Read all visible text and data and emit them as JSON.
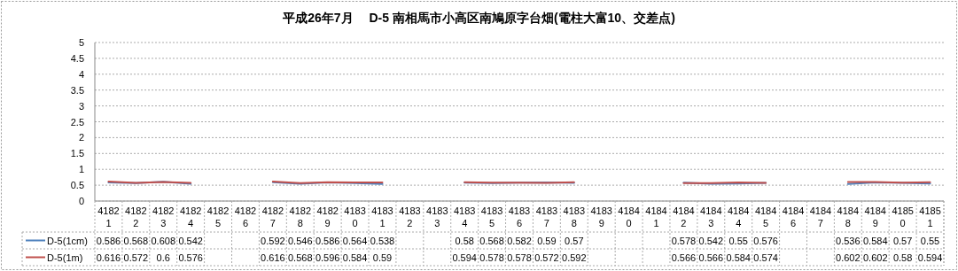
{
  "chart_data": {
    "type": "line",
    "title": "平成26年7月　 D-5 南相馬市小高区南鳩原字台畑(電柱大富10、交差点)",
    "categories": [
      "41821",
      "41822",
      "41823",
      "41824",
      "41825",
      "41826",
      "41827",
      "41828",
      "41829",
      "41830",
      "41831",
      "41832",
      "41833",
      "41834",
      "41835",
      "41836",
      "41837",
      "41838",
      "41839",
      "41840",
      "41841",
      "41842",
      "41843",
      "41844",
      "41845",
      "41846",
      "41847",
      "41848",
      "41849",
      "41850",
      "41851"
    ],
    "series": [
      {
        "name": "D-5(1cm)",
        "color": "#4f81bd",
        "values": [
          0.586,
          0.568,
          0.608,
          0.542,
          null,
          null,
          0.592,
          0.546,
          0.586,
          0.564,
          0.538,
          null,
          null,
          0.58,
          0.568,
          0.582,
          0.59,
          0.57,
          null,
          null,
          null,
          0.578,
          0.542,
          0.55,
          0.576,
          null,
          null,
          0.536,
          0.584,
          0.57,
          0.55
        ]
      },
      {
        "name": "D-5(1m)",
        "color": "#c0504d",
        "values": [
          0.616,
          0.572,
          0.6,
          0.576,
          null,
          null,
          0.616,
          0.568,
          0.596,
          0.584,
          0.59,
          null,
          null,
          0.594,
          0.578,
          0.578,
          0.572,
          0.592,
          null,
          null,
          null,
          0.566,
          0.566,
          0.584,
          0.574,
          null,
          null,
          0.602,
          0.602,
          0.58,
          0.594
        ]
      }
    ],
    "ylim": [
      0,
      5
    ],
    "yticks": [
      0,
      0.5,
      1,
      1.5,
      2,
      2.5,
      3,
      3.5,
      4,
      4.5,
      5
    ],
    "grid": "y",
    "legend": "bottom",
    "data_labels": true
  }
}
